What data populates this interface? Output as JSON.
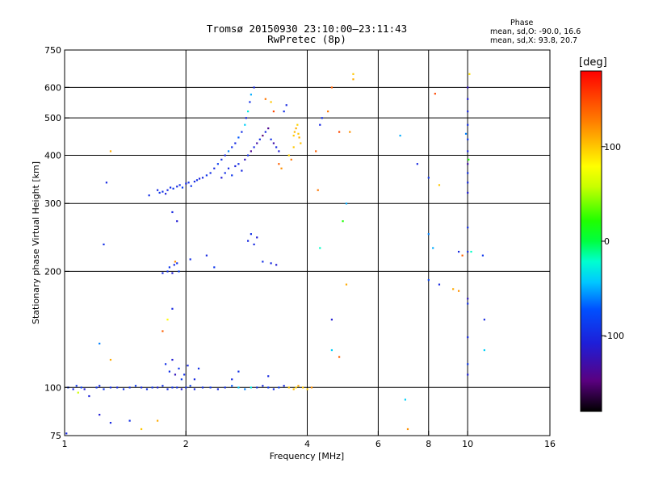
{
  "header": {
    "title_line1": "Tromsø 20150930 23:10:00–23:11:43",
    "title_line2": "RwPretec (8p)",
    "phase_title": "Phase",
    "phase_stat_o": "mean, sd,O: -90.0, 16.6",
    "phase_stat_x": "mean, sd,X:  93.8, 20.7"
  },
  "colorbar": {
    "unit": "[deg]",
    "range": [
      -180,
      180
    ],
    "ticks": [
      {
        "value": 100,
        "label": "100"
      },
      {
        "value": 0,
        "label": "0"
      },
      {
        "value": -100,
        "label": "-100"
      }
    ]
  },
  "chart_data": {
    "type": "scatter",
    "xlabel": "Frequency [MHz]",
    "ylabel": "Stationary phase Virtual Height [km]",
    "x_scale": "log",
    "y_scale": "log",
    "xlim": [
      1,
      16
    ],
    "ylim": [
      75,
      750
    ],
    "x_ticks": [
      {
        "value": 1,
        "label": "1"
      },
      {
        "value": 2,
        "label": "2"
      },
      {
        "value": 4,
        "label": "4"
      },
      {
        "value": 6,
        "label": "6"
      },
      {
        "value": 8,
        "label": "8"
      },
      {
        "value": 10,
        "label": "10"
      },
      {
        "value": 16,
        "label": "16"
      }
    ],
    "y_ticks": [
      {
        "value": 75,
        "label": "75"
      },
      {
        "value": 100,
        "label": "100"
      },
      {
        "value": 200,
        "label": "200"
      },
      {
        "value": 300,
        "label": "300"
      },
      {
        "value": 400,
        "label": "400"
      },
      {
        "value": 500,
        "label": "500"
      },
      {
        "value": 600,
        "label": "600"
      },
      {
        "value": 750,
        "label": "750"
      }
    ],
    "grid": true,
    "grid_x": [
      2,
      4,
      6,
      8,
      10
    ],
    "grid_y": [
      100,
      200,
      300,
      400,
      500,
      600
    ],
    "points": [
      [
        1.02,
        100,
        -95
      ],
      [
        1.05,
        99,
        -100
      ],
      [
        1.07,
        101,
        -90
      ],
      [
        1.1,
        100,
        -85
      ],
      [
        1.12,
        99,
        -110
      ],
      [
        1.2,
        100,
        -95
      ],
      [
        1.22,
        101,
        -100
      ],
      [
        1.25,
        99,
        -90
      ],
      [
        1.3,
        100,
        -95
      ],
      [
        1.35,
        100,
        -100
      ],
      [
        1.4,
        99,
        -92
      ],
      [
        1.45,
        100,
        -95
      ],
      [
        1.5,
        101,
        -88
      ],
      [
        1.55,
        100,
        -100
      ],
      [
        1.6,
        99,
        -95
      ],
      [
        1.65,
        100,
        -90
      ],
      [
        1.7,
        100,
        -105
      ],
      [
        1.75,
        101,
        -95
      ],
      [
        1.8,
        99,
        -100
      ],
      [
        1.85,
        100,
        -92
      ],
      [
        1.9,
        100,
        -95
      ],
      [
        1.95,
        99,
        -110
      ],
      [
        2.0,
        100,
        -95
      ],
      [
        2.05,
        101,
        -85
      ],
      [
        2.1,
        99,
        -100
      ],
      [
        2.2,
        100,
        -95
      ],
      [
        2.3,
        100,
        -90
      ],
      [
        2.4,
        99,
        -100
      ],
      [
        2.5,
        100,
        -95
      ],
      [
        2.6,
        101,
        -70
      ],
      [
        2.7,
        100,
        -40
      ],
      [
        2.8,
        99,
        -60
      ],
      [
        2.9,
        100,
        -30
      ],
      [
        3.0,
        100,
        -95
      ],
      [
        3.1,
        101,
        -100
      ],
      [
        3.2,
        100,
        -90
      ],
      [
        3.3,
        99,
        -95
      ],
      [
        3.4,
        100,
        -85
      ],
      [
        3.5,
        101,
        -100
      ],
      [
        3.6,
        100,
        100
      ],
      [
        3.7,
        99,
        105
      ],
      [
        3.75,
        100,
        95
      ],
      [
        3.8,
        101,
        110
      ],
      [
        3.9,
        100,
        100
      ],
      [
        4.0,
        99,
        98
      ],
      [
        4.1,
        100,
        120
      ],
      [
        1.08,
        97,
        60
      ],
      [
        1.15,
        95,
        -105
      ],
      [
        1.3,
        81,
        -100
      ],
      [
        1.45,
        82,
        -95
      ],
      [
        1.22,
        85,
        -110
      ],
      [
        1.01,
        76,
        -100
      ],
      [
        1.7,
        82,
        110
      ],
      [
        1.55,
        78,
        100
      ],
      [
        1.75,
        198,
        -100
      ],
      [
        1.8,
        200,
        -95
      ],
      [
        1.82,
        205,
        -90
      ],
      [
        1.85,
        198,
        -110
      ],
      [
        1.87,
        208,
        -100
      ],
      [
        1.9,
        210,
        -95
      ],
      [
        1.92,
        200,
        -85
      ],
      [
        1.88,
        212,
        120
      ],
      [
        2.05,
        215,
        -95
      ],
      [
        1.85,
        285,
        -100
      ],
      [
        1.9,
        270,
        -110
      ],
      [
        1.62,
        315,
        -95
      ],
      [
        1.7,
        325,
        -100
      ],
      [
        1.72,
        320,
        -90
      ],
      [
        1.75,
        322,
        -95
      ],
      [
        1.78,
        318,
        -105
      ],
      [
        1.8,
        325,
        -100
      ],
      [
        1.83,
        330,
        -95
      ],
      [
        1.86,
        328,
        -90
      ],
      [
        1.9,
        332,
        -100
      ],
      [
        1.93,
        335,
        -95
      ],
      [
        1.96,
        330,
        -85
      ],
      [
        2.0,
        338,
        -100
      ],
      [
        2.03,
        340,
        -95
      ],
      [
        2.06,
        333,
        -90
      ],
      [
        2.1,
        342,
        -100
      ],
      [
        2.13,
        345,
        -95
      ],
      [
        2.16,
        348,
        -105
      ],
      [
        2.2,
        350,
        -100
      ],
      [
        2.25,
        355,
        -90
      ],
      [
        2.3,
        360,
        -95
      ],
      [
        2.35,
        370,
        -100
      ],
      [
        2.4,
        380,
        -85
      ],
      [
        2.45,
        390,
        -95
      ],
      [
        2.5,
        400,
        -100
      ],
      [
        2.55,
        410,
        -60
      ],
      [
        2.6,
        420,
        -95
      ],
      [
        2.65,
        430,
        -100
      ],
      [
        2.7,
        445,
        -70
      ],
      [
        2.75,
        460,
        -95
      ],
      [
        2.8,
        480,
        -40
      ],
      [
        2.82,
        500,
        -100
      ],
      [
        2.85,
        520,
        -30
      ],
      [
        2.88,
        550,
        -95
      ],
      [
        2.9,
        575,
        -50
      ],
      [
        2.95,
        600,
        -100
      ],
      [
        2.45,
        350,
        -110
      ],
      [
        2.5,
        360,
        -95
      ],
      [
        2.55,
        370,
        -100
      ],
      [
        2.6,
        355,
        -90
      ],
      [
        2.65,
        375,
        -105
      ],
      [
        2.7,
        380,
        -95
      ],
      [
        2.75,
        365,
        -100
      ],
      [
        2.8,
        390,
        -120
      ],
      [
        2.85,
        400,
        -95
      ],
      [
        2.9,
        410,
        -140
      ],
      [
        2.95,
        420,
        -100
      ],
      [
        3.0,
        430,
        -130
      ],
      [
        3.05,
        440,
        -95
      ],
      [
        3.1,
        450,
        -150
      ],
      [
        3.15,
        460,
        -100
      ],
      [
        3.2,
        470,
        -140
      ],
      [
        3.25,
        440,
        -95
      ],
      [
        3.3,
        430,
        -130
      ],
      [
        3.35,
        420,
        -100
      ],
      [
        3.4,
        410,
        -110
      ],
      [
        3.5,
        520,
        -95
      ],
      [
        3.55,
        540,
        -100
      ],
      [
        3.7,
        450,
        100
      ],
      [
        3.72,
        460,
        105
      ],
      [
        3.75,
        470,
        110
      ],
      [
        3.78,
        480,
        95
      ],
      [
        3.8,
        455,
        100
      ],
      [
        3.82,
        445,
        108
      ],
      [
        3.6,
        400,
        95
      ],
      [
        3.7,
        420,
        100
      ],
      [
        3.65,
        390,
        130
      ],
      [
        3.85,
        430,
        102
      ],
      [
        4.3,
        480,
        -100
      ],
      [
        4.35,
        500,
        -95
      ],
      [
        4.5,
        520,
        130
      ],
      [
        4.6,
        600,
        140
      ],
      [
        4.8,
        460,
        150
      ],
      [
        5.1,
        460,
        120
      ],
      [
        5.2,
        630,
        110
      ],
      [
        5.2,
        650,
        100
      ],
      [
        5.0,
        300,
        -50
      ],
      [
        4.9,
        270,
        20
      ],
      [
        4.6,
        150,
        -110
      ],
      [
        4.6,
        125,
        -40
      ],
      [
        4.8,
        120,
        140
      ],
      [
        4.2,
        410,
        140
      ],
      [
        4.25,
        325,
        130
      ],
      [
        4.3,
        230,
        -20
      ],
      [
        5.0,
        185,
        110
      ],
      [
        7.0,
        93,
        -40
      ],
      [
        7.1,
        78,
        120
      ],
      [
        6.8,
        450,
        -50
      ],
      [
        7.5,
        380,
        -100
      ],
      [
        8.0,
        350,
        -90
      ],
      [
        8.3,
        578,
        150
      ],
      [
        8.5,
        335,
        100
      ],
      [
        9.2,
        180,
        110
      ],
      [
        9.5,
        178,
        120
      ],
      [
        8.0,
        250,
        -60
      ],
      [
        8.2,
        230,
        -50
      ],
      [
        8.5,
        185,
        -100
      ],
      [
        8.0,
        190,
        -80
      ],
      [
        10.0,
        600,
        -120
      ],
      [
        10.0,
        560,
        -110
      ],
      [
        10.0,
        520,
        -100
      ],
      [
        10.0,
        480,
        -95
      ],
      [
        10.0,
        440,
        -90
      ],
      [
        10.0,
        410,
        -100
      ],
      [
        10.0,
        380,
        -130
      ],
      [
        10.0,
        360,
        -95
      ],
      [
        10.0,
        340,
        -100
      ],
      [
        10.0,
        320,
        -110
      ],
      [
        10.0,
        260,
        -95
      ],
      [
        10.0,
        225,
        -100
      ],
      [
        10.0,
        170,
        -120
      ],
      [
        10.0,
        165,
        -95
      ],
      [
        10.0,
        135,
        -100
      ],
      [
        10.0,
        115,
        -90
      ],
      [
        10.0,
        108,
        -105
      ],
      [
        10.1,
        650,
        90
      ],
      [
        10.2,
        225,
        -20
      ],
      [
        10.9,
        220,
        -90
      ],
      [
        11.0,
        150,
        -100
      ],
      [
        11.0,
        125,
        -40
      ],
      [
        9.5,
        225,
        -100
      ],
      [
        9.7,
        220,
        140
      ],
      [
        9.9,
        455,
        -60
      ],
      [
        10.05,
        390,
        20
      ],
      [
        1.27,
        340,
        -100
      ],
      [
        1.25,
        235,
        -95
      ],
      [
        1.3,
        410,
        110
      ],
      [
        1.3,
        118,
        110
      ],
      [
        1.22,
        130,
        -60
      ],
      [
        1.75,
        140,
        140
      ],
      [
        1.8,
        150,
        80
      ],
      [
        1.85,
        160,
        -100
      ],
      [
        1.78,
        115,
        -95
      ],
      [
        1.85,
        118,
        -110
      ],
      [
        1.92,
        112,
        -90
      ],
      [
        1.98,
        108,
        -95
      ],
      [
        2.02,
        114,
        -100
      ],
      [
        1.95,
        105,
        -85
      ],
      [
        1.88,
        108,
        -120
      ],
      [
        1.82,
        110,
        -95
      ],
      [
        2.1,
        105,
        -100
      ],
      [
        2.15,
        112,
        -95
      ],
      [
        2.6,
        105,
        -100
      ],
      [
        2.7,
        110,
        -95
      ],
      [
        3.2,
        107,
        -100
      ],
      [
        3.1,
        212,
        -95
      ],
      [
        3.25,
        210,
        -100
      ],
      [
        3.35,
        208,
        -110
      ],
      [
        2.85,
        240,
        -100
      ],
      [
        2.9,
        250,
        -95
      ],
      [
        2.95,
        235,
        -100
      ],
      [
        2.25,
        220,
        -100
      ],
      [
        2.35,
        205,
        -90
      ],
      [
        3.0,
        245,
        -110
      ],
      [
        3.4,
        380,
        140
      ],
      [
        3.45,
        370,
        120
      ],
      [
        3.3,
        520,
        150
      ],
      [
        3.25,
        550,
        100
      ],
      [
        3.15,
        560,
        130
      ]
    ]
  }
}
